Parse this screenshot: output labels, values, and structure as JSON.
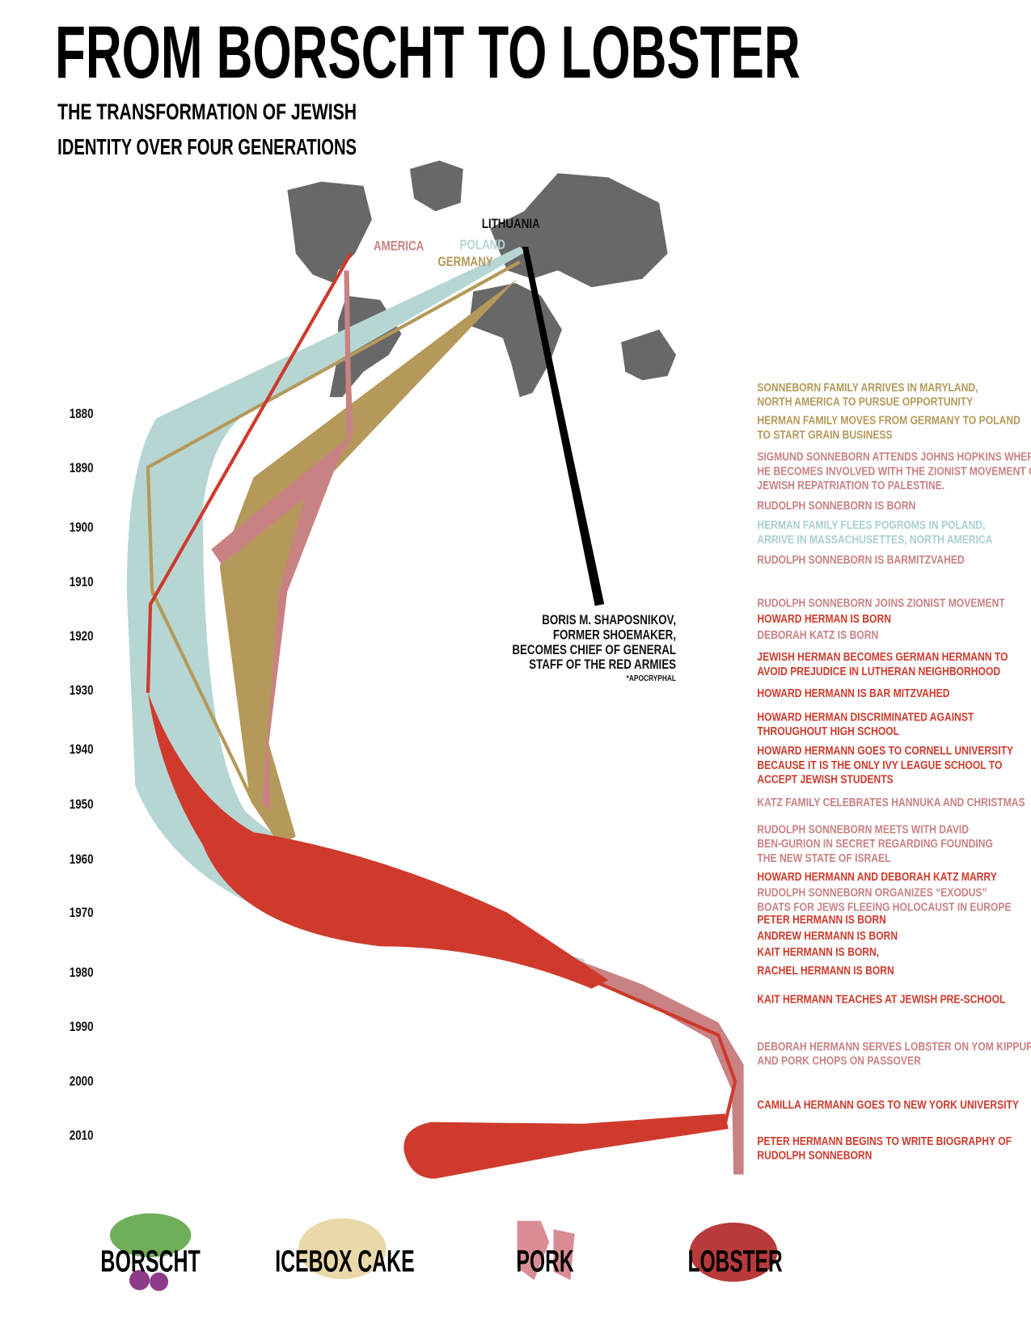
{
  "header": {
    "title": "FROM BORSCHT TO LOBSTER",
    "subtitle": [
      "THE TRANSFORMATION OF JEWISH",
      "IDENTITY OVER FOUR GENERATIONS"
    ]
  },
  "map": {
    "labels": [
      {
        "text": "LITHUANIA",
        "color": "#111111"
      },
      {
        "text": "POLAND",
        "color": "#b6d6d4"
      },
      {
        "text": "GERMANY",
        "color": "#b5995a"
      },
      {
        "text": "AMERICA",
        "color": "#c98283"
      }
    ]
  },
  "annotation": {
    "lines": [
      "BORIS M. SHAPOSNIKOV,",
      "FORMER SHOEMAKER,",
      "BECOMES CHIEF OF GENERAL",
      "STAFF OF THE RED ARMIES"
    ],
    "note": "*APOCRYPHAL"
  },
  "timeline": {
    "years": [
      "1880",
      "1890",
      "1900",
      "1910",
      "1920",
      "1930",
      "1940",
      "1950",
      "1960",
      "1970",
      "1980",
      "1990",
      "2000",
      "2010"
    ]
  },
  "events": [
    {
      "lines": [
        "SONNEBORN FAMILY ARRIVES IN MARYLAND,",
        "NORTH AMERICA TO PURSUE OPPORTUNITY"
      ],
      "color": "#b5995a"
    },
    {
      "lines": [
        "HERMAN FAMILY MOVES FROM GERMANY TO POLAND",
        "TO START GRAIN BUSINESS"
      ],
      "color": "#b5995a"
    },
    {
      "lines": [
        "SIGMUND SONNEBORN ATTENDS JOHNS HOPKINS WHERE",
        "HE BECOMES INVOLVED WITH THE ZIONIST MOVEMENT OF",
        "JEWISH REPATRIATION TO PALESTINE."
      ],
      "color": "#c98283"
    },
    {
      "lines": [
        "RUDOLPH SONNEBORN IS BORN"
      ],
      "color": "#c98283"
    },
    {
      "lines": [
        "HERMAN FAMILY FLEES POGROMS IN POLAND,",
        "ARRIVE IN MASSACHUSETTES, NORTH AMERICA"
      ],
      "color": "#a9d0ce"
    },
    {
      "lines": [
        "RUDOLPH SONNEBORN IS BARMITZVAHED"
      ],
      "color": "#c98283"
    },
    {
      "lines": [
        "RUDOLPH SONNEBORN JOINS ZIONIST MOVEMENT"
      ],
      "color": "#c98283"
    },
    {
      "lines": [
        "HOWARD  HERMAN  IS  BORN"
      ],
      "color": "#cf3a2c"
    },
    {
      "lines": [
        "DEBORAH KATZ IS BORN"
      ],
      "color": "#c98283"
    },
    {
      "lines": [
        "JEWISH HERMAN BECOMES GERMAN HERMANN TO",
        "AVOID PREJUDICE IN LUTHERAN NEIGHBORHOOD"
      ],
      "color": "#cf3a2c"
    },
    {
      "lines": [
        "HOWARD  HERMANN  IS  BAR MITZVAHED"
      ],
      "color": "#cf3a2c"
    },
    {
      "lines": [
        "HOWARD  HERMAN  DISCRIMINATED AGAINST",
        "THROUGHOUT HIGH SCHOOL"
      ],
      "color": "#cf3a2c"
    },
    {
      "lines": [
        "HOWARD HERMANN GOES TO CORNELL UNIVERSITY",
        "BECAUSE  IT IS THE ONLY IVY LEAGUE SCHOOL TO",
        "ACCEPT JEWISH STUDENTS"
      ],
      "color": "#cf3a2c"
    },
    {
      "lines": [
        "KATZ FAMILY CELEBRATES HANNUKA AND CHRISTMAS"
      ],
      "color": "#c98283"
    },
    {
      "lines": [
        "RUDOLPH SONNEBORN MEETS WITH DAVID",
        "BEN-GURION IN SECRET REGARDING FOUNDING",
        "THE NEW STATE OF ISRAEL"
      ],
      "color": "#c98283"
    },
    {
      "lines": [
        "HOWARD HERMANN AND DEBORAH KATZ MARRY"
      ],
      "color": "#cf3a2c"
    },
    {
      "lines": [
        "RUDOLPH SONNEBORN ORGANIZES “EXODUS”",
        "BOATS FOR JEWS FLEEING HOLOCAUST IN EUROPE"
      ],
      "color": "#c98283"
    },
    {
      "lines": [
        "PETER HERMANN IS BORN"
      ],
      "color": "#cf3a2c"
    },
    {
      "lines": [
        "ANDREW HERMANN IS BORN"
      ],
      "color": "#cf3a2c"
    },
    {
      "lines": [
        "KAIT HERMANN IS BORN,"
      ],
      "color": "#cf3a2c"
    },
    {
      "lines": [
        "RACHEL HERMANN IS BORN"
      ],
      "color": "#cf3a2c"
    },
    {
      "lines": [
        "KAIT HERMANN TEACHES AT JEWISH PRE-SCHOOL"
      ],
      "color": "#cf3a2c"
    },
    {
      "lines": [
        "DEBORAH HERMANN SERVES LOBSTER ON YOM KIPPUR",
        "AND PORK CHOPS ON PASSOVER"
      ],
      "color": "#c98283"
    },
    {
      "lines": [
        "CAMILLA HERMANN GOES TO NEW YORK UNIVERSITY"
      ],
      "color": "#cf3a2c"
    },
    {
      "lines": [
        "PETER HERMANN BEGINS TO WRITE BIOGRAPHY OF",
        "RUDOLPH SONNEBORN"
      ],
      "color": "#cf3a2c"
    }
  ],
  "foods": [
    "BORSCHT",
    "ICEBOX CAKE",
    "PORK",
    "LOBSTER"
  ]
}
